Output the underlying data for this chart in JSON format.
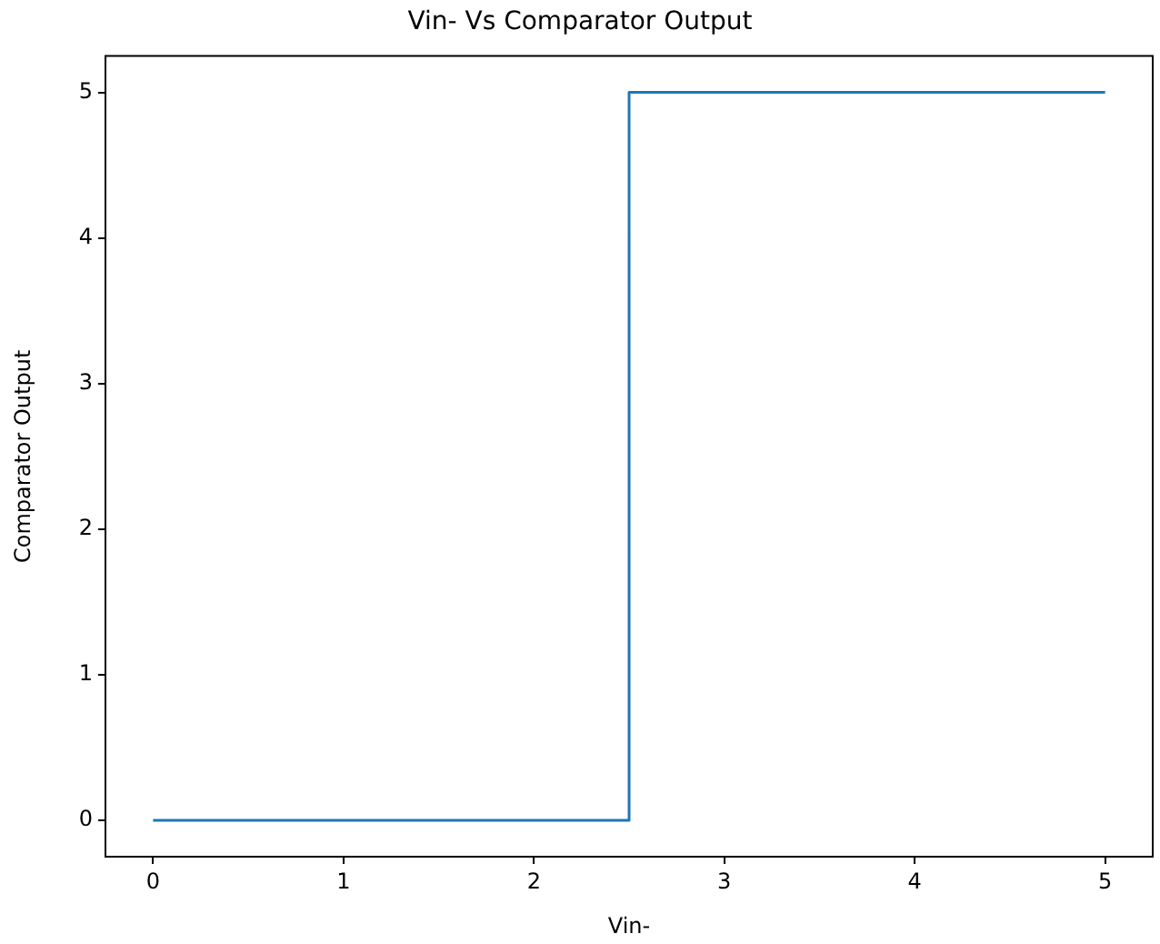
{
  "chart_data": {
    "type": "line",
    "title": "Vin- Vs Comparator Output",
    "xlabel": "Vin-",
    "ylabel": "Comparator Output",
    "series": [
      {
        "color": "#1f77b4",
        "x": [
          0,
          2.5,
          2.5,
          5
        ],
        "values": [
          0,
          0,
          5,
          5
        ]
      }
    ],
    "xlim": [
      -0.25,
      5.25
    ],
    "xticks": [
      0,
      1,
      2,
      3,
      4,
      5
    ],
    "ylim": [
      -0.25,
      5.25
    ],
    "yticks": [
      0,
      1,
      2,
      3,
      4,
      5
    ],
    "grid": false,
    "legend": false,
    "marker": "none",
    "line_style": "solid"
  }
}
